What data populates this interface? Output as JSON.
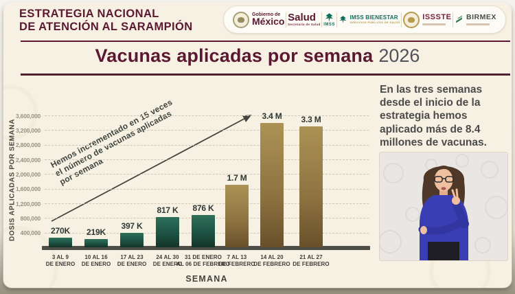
{
  "colors": {
    "maroon": "#5b1832",
    "cream_background": "#f7f1e3",
    "bar_green": "#1d5243",
    "bar_gold": "#8d7140",
    "axis_gray": "#4e4d47"
  },
  "header": {
    "title_line1": "ESTRATEGIA NACIONAL",
    "title_line2": "DE ATENCIÓN AL SARAMPIÓN",
    "logos": [
      {
        "id": "gobierno-mexico",
        "label": "Gobierno de",
        "label2": "México"
      },
      {
        "id": "salud",
        "label": "Salud",
        "sublabel": "Secretaría de Salud"
      },
      {
        "id": "imss",
        "label": "IMSS"
      },
      {
        "id": "imss-bienestar",
        "label": "IMSS BIENESTAR",
        "sublabel": "SERVICIOS PÚBLICOS DE SALUD"
      },
      {
        "id": "issste",
        "label": "ISSSTE"
      },
      {
        "id": "birmex",
        "label": "BIRMEX"
      }
    ]
  },
  "title": {
    "main": "Vacunas aplicadas por semana",
    "year": "2026"
  },
  "chart_data": {
    "type": "bar",
    "title": "Vacunas aplicadas por semana 2026",
    "xlabel": "SEMANA",
    "ylabel": "DOSIS APLICADAS POR SEMANA",
    "ylim": [
      0,
      3600000
    ],
    "ytick_interval": 400000,
    "ytick_labels": [
      "400,000",
      "800,000",
      "1,200,000",
      "1,600,000",
      "2,000,000",
      "2,400,000",
      "2,800,000",
      "3,200,000",
      "3,600,000"
    ],
    "grid": "horizontal dashed",
    "legend": "none",
    "categories": [
      "3 AL 9\nDE ENERO",
      "10 AL 16\nDE ENERO",
      "17 AL 23\nDE ENERO",
      "24 AL 30\nDE ENERO",
      "31 DE ENERO\nAL 06 DE FEBRERO",
      "7 AL 13\nDE FEBRERO",
      "14 AL 20\nDE FEBRERO",
      "21 AL 27\nDE FEBRERO"
    ],
    "values": [
      270000,
      219000,
      397000,
      817000,
      876000,
      1700000,
      3400000,
      3300000
    ],
    "value_labels": [
      "270K",
      "219K",
      "397 K",
      "817 K",
      "876 K",
      "1.7 M",
      "3.4 M",
      "3.3 M"
    ],
    "bar_palette": [
      "green",
      "green",
      "green",
      "green",
      "green",
      "gold",
      "gold",
      "gold"
    ],
    "annotation": {
      "text_lines": [
        "Hemos incrementado en 15 veces",
        "el número de vacunas aplicadas",
        "por semana"
      ],
      "arrow": "diagonal ascending left-to-right toward 3.4 M bar"
    }
  },
  "side_panel": {
    "text": "En las tres semanas desde el inicio de la estrategia hemos aplicado más de 8.4 millones de vacunas.",
    "media": "sign-language-interpreter"
  }
}
